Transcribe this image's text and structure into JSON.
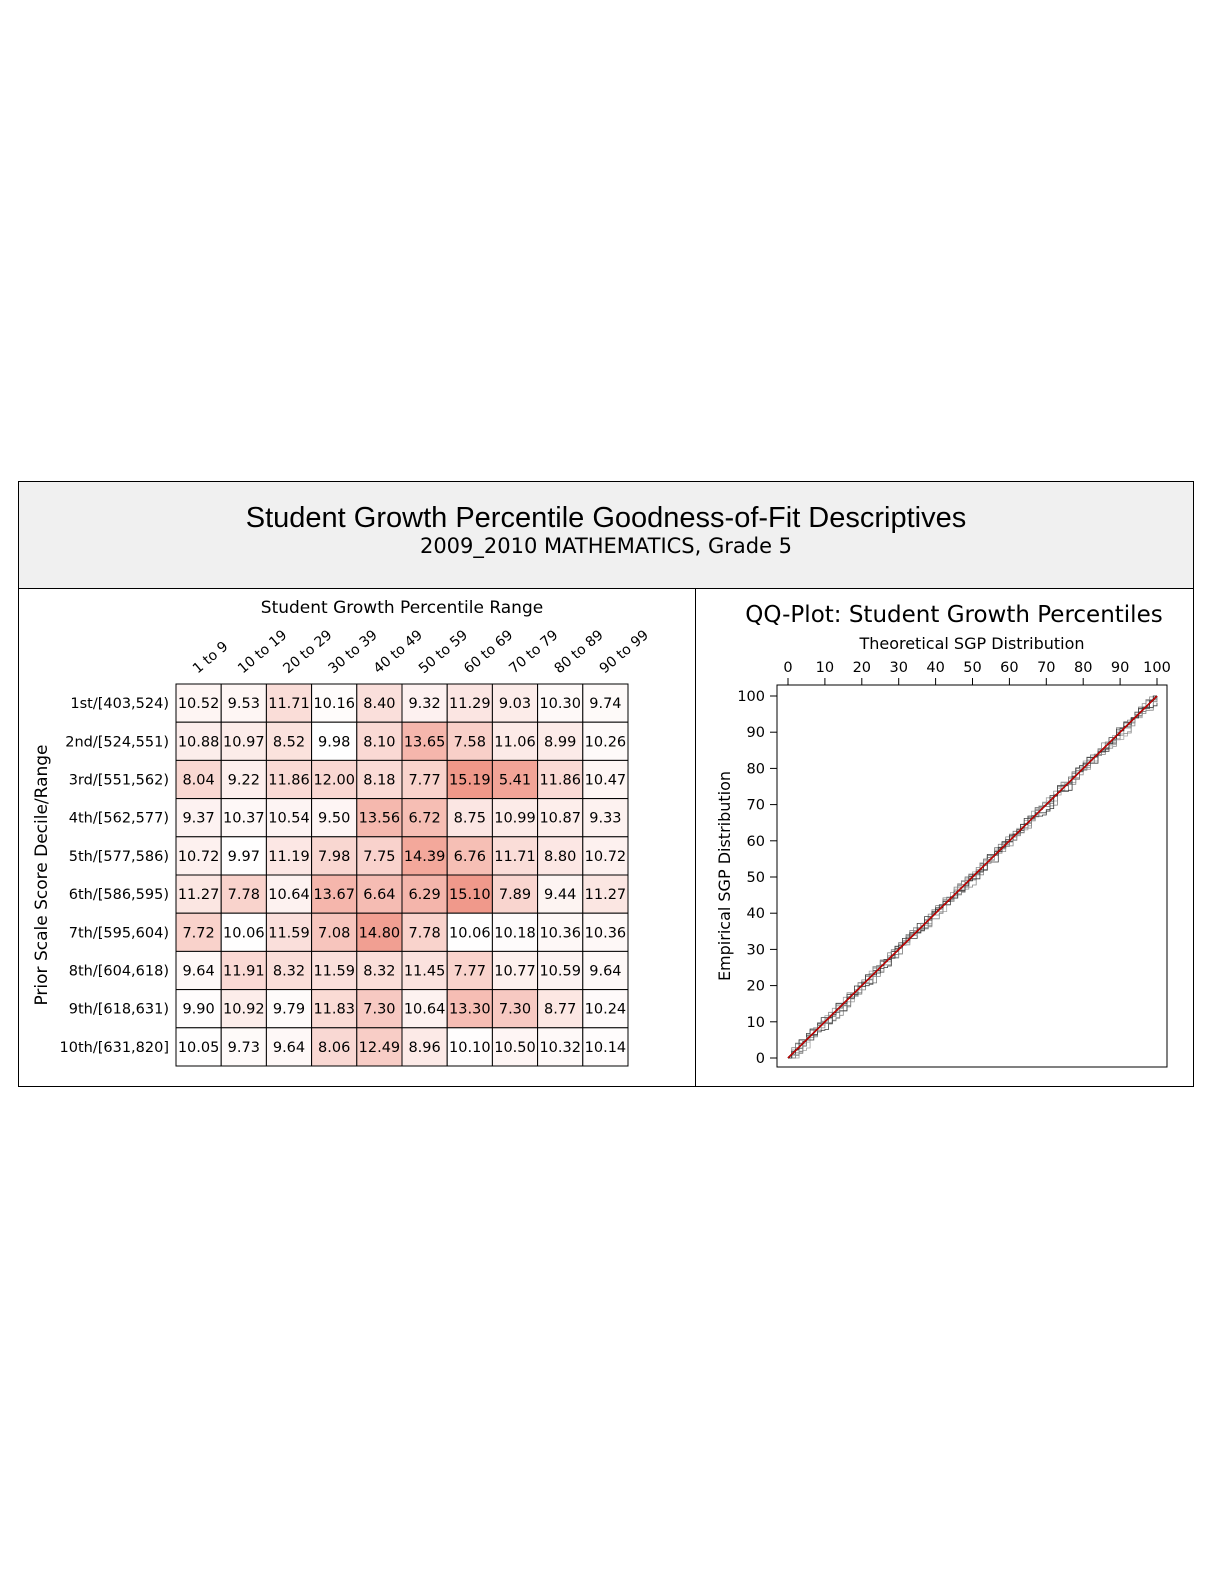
{
  "header": {
    "title": "Student Growth Percentile Goodness-of-Fit Descriptives",
    "subtitle": "2009_2010 MATHEMATICS, Grade 5"
  },
  "chart_data": [
    {
      "type": "heatmap",
      "title": "Student Growth Percentile Range",
      "xlabel": "Student Growth Percentile Range",
      "ylabel": "Prior Scale Score Decile/Range",
      "columns": [
        "1 to 9",
        "10 to 19",
        "20 to 29",
        "30 to 39",
        "40 to 49",
        "50 to 59",
        "60 to 69",
        "70 to 79",
        "80 to 89",
        "90 to 99"
      ],
      "rows": [
        "1st/[403,524)",
        "2nd/[524,551)",
        "3rd/[551,562)",
        "4th/[562,577)",
        "5th/[577,586)",
        "6th/[586,595)",
        "7th/[595,604)",
        "8th/[604,618)",
        "9th/[618,631)",
        "10th/[631,820]"
      ],
      "values": [
        [
          "10.52",
          "9.53",
          "11.71",
          "10.16",
          "8.40",
          "9.32",
          "11.29",
          "9.03",
          "10.30",
          "9.74"
        ],
        [
          "10.88",
          "10.97",
          "8.52",
          "9.98",
          "8.10",
          "13.65",
          "7.58",
          "11.06",
          "8.99",
          "10.26"
        ],
        [
          "8.04",
          "9.22",
          "11.86",
          "12.00",
          "8.18",
          "7.77",
          "15.19",
          "5.41",
          "11.86",
          "10.47"
        ],
        [
          "9.37",
          "10.37",
          "10.54",
          "9.50",
          "13.56",
          "6.72",
          "8.75",
          "10.99",
          "10.87",
          "9.33"
        ],
        [
          "10.72",
          "9.97",
          "11.19",
          "7.98",
          "7.75",
          "14.39",
          "6.76",
          "11.71",
          "8.80",
          "10.72"
        ],
        [
          "11.27",
          "7.78",
          "10.64",
          "13.67",
          "6.64",
          "6.29",
          "15.10",
          "7.89",
          "9.44",
          "11.27"
        ],
        [
          "7.72",
          "10.06",
          "11.59",
          "7.08",
          "14.80",
          "7.78",
          "10.06",
          "10.18",
          "10.36",
          "10.36"
        ],
        [
          "9.64",
          "11.91",
          "8.32",
          "11.59",
          "8.32",
          "11.45",
          "7.77",
          "10.77",
          "10.59",
          "9.64"
        ],
        [
          "9.90",
          "10.92",
          "9.79",
          "11.83",
          "7.30",
          "10.64",
          "13.30",
          "7.30",
          "8.77",
          "10.24"
        ],
        [
          "10.05",
          "9.73",
          "9.64",
          "8.06",
          "12.49",
          "8.96",
          "10.10",
          "10.50",
          "10.32",
          "10.14"
        ]
      ],
      "expected_value": 10,
      "colors": {
        "low": "#ffffff",
        "high": "#ee8877"
      }
    },
    {
      "type": "line",
      "title": "QQ-Plot: Student Growth Percentiles",
      "xlabel": "Theoretical SGP Distribution",
      "ylabel": "Empirical SGP Distribution",
      "x_ticks": [
        "0",
        "10",
        "20",
        "30",
        "40",
        "50",
        "60",
        "70",
        "80",
        "90",
        "100"
      ],
      "y_ticks": [
        "0",
        "10",
        "20",
        "30",
        "40",
        "50",
        "60",
        "70",
        "80",
        "90",
        "100"
      ],
      "xlim": [
        0,
        100
      ],
      "ylim": [
        0,
        100
      ],
      "reference_line": {
        "x": [
          0,
          100
        ],
        "y": [
          0,
          100
        ],
        "color": "#cc0000"
      },
      "series": [
        {
          "x": [
            0,
            10,
            20,
            30,
            40,
            50,
            60,
            70,
            80,
            90,
            100
          ],
          "y": [
            0,
            10,
            20,
            30,
            40,
            50,
            60,
            70,
            80,
            90,
            100
          ]
        }
      ]
    }
  ]
}
